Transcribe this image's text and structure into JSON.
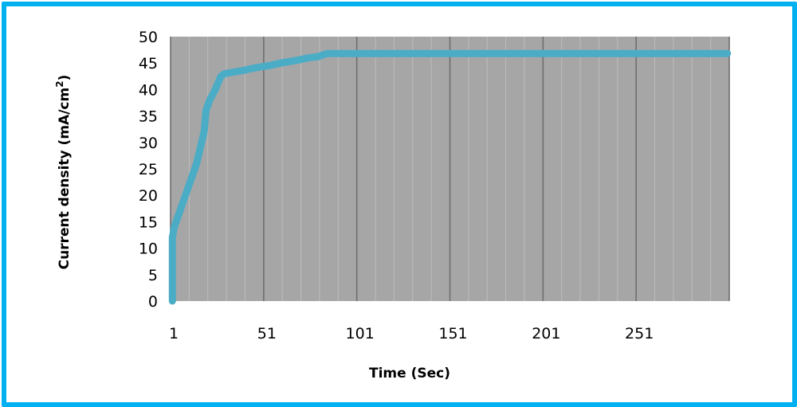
{
  "chart_data": {
    "type": "line",
    "title": "",
    "xlabel": "Time (Sec)",
    "ylabel": "Current density (mA/cm",
    "ylabel_sup": "2",
    "ylabel_close": ")",
    "xlim": [
      1,
      301
    ],
    "ylim": [
      0,
      50
    ],
    "x_ticks": [
      1,
      51,
      101,
      151,
      201,
      251
    ],
    "x_tick_labels": [
      "1",
      "51",
      "101",
      "151",
      "201",
      "251"
    ],
    "x_gridlines": [
      1,
      11,
      21,
      31,
      41,
      51,
      61,
      71,
      81,
      91,
      101,
      111,
      121,
      131,
      141,
      151,
      161,
      171,
      181,
      191,
      201,
      211,
      221,
      231,
      241,
      251,
      261,
      271,
      281,
      291,
      301
    ],
    "y_ticks": [
      0,
      5,
      10,
      15,
      20,
      25,
      30,
      35,
      40,
      45,
      50
    ],
    "y_tick_labels": [
      "0",
      "5",
      "10",
      "15",
      "20",
      "25",
      "30",
      "35",
      "40",
      "45",
      "50"
    ],
    "grid": "vertical",
    "plot_background": "#a6a6a6",
    "series": [
      {
        "color": "#4bacc6",
        "x": [
          2,
          2,
          3,
          5,
          7,
          10,
          13,
          15,
          17,
          19,
          20,
          22,
          25,
          28,
          30,
          35,
          40,
          45,
          50,
          55,
          60,
          65,
          70,
          75,
          80,
          85,
          90,
          100,
          150,
          200,
          250,
          300
        ],
        "y": [
          0,
          12,
          14,
          16,
          18,
          21,
          24,
          26,
          29,
          32,
          36,
          38,
          40,
          42.5,
          43,
          43.3,
          43.6,
          44,
          44.3,
          44.6,
          45,
          45.3,
          45.6,
          46,
          46.2,
          46.8,
          46.8,
          46.8,
          46.8,
          46.8,
          46.8,
          46.8
        ]
      }
    ]
  },
  "colors": {
    "frame": "#00b0f0",
    "plot_background": "#a6a6a6",
    "gridline_major": "#6e6e6e",
    "gridline_minor": "#bdbdbd",
    "series": "#4bacc6"
  }
}
